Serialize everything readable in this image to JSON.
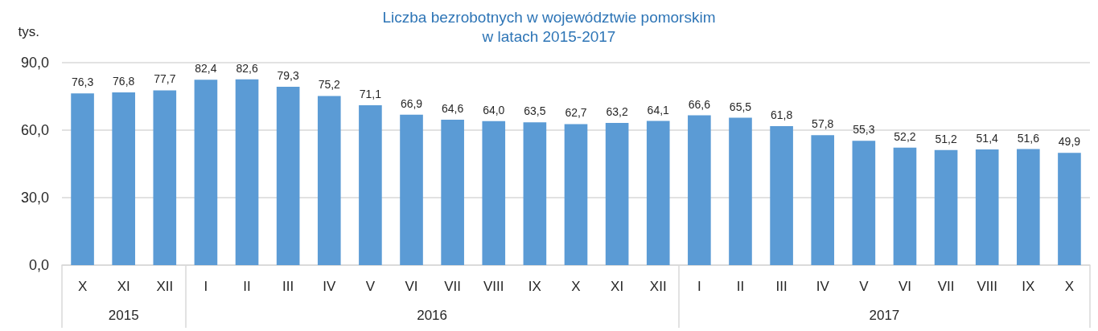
{
  "chart_data": {
    "type": "bar",
    "title": "Liczba bezrobotnych w województwie pomorskim\nw latach 2015-2017",
    "ylabel": "tys.",
    "categories": [
      "X",
      "XI",
      "XII",
      "I",
      "II",
      "III",
      "IV",
      "V",
      "VI",
      "VII",
      "VIII",
      "IX",
      "X",
      "XI",
      "XII",
      "I",
      "II",
      "III",
      "IV",
      "V",
      "VI",
      "VII",
      "VIII",
      "IX",
      "X"
    ],
    "values": [
      76.3,
      76.8,
      77.7,
      82.4,
      82.6,
      79.3,
      75.2,
      71.1,
      66.9,
      64.6,
      64.0,
      63.5,
      62.7,
      63.2,
      64.1,
      66.6,
      65.5,
      61.8,
      57.8,
      55.3,
      52.2,
      51.2,
      51.4,
      51.6,
      49.9
    ],
    "value_labels": [
      "76,3",
      "76,8",
      "77,7",
      "82,4",
      "82,6",
      "79,3",
      "75,2",
      "71,1",
      "66,9",
      "64,6",
      "64,0",
      "63,5",
      "62,7",
      "63,2",
      "64,1",
      "66,6",
      "65,5",
      "61,8",
      "57,8",
      "55,3",
      "52,2",
      "51,2",
      "51,4",
      "51,6",
      "49,9"
    ],
    "color": "#5b9bd5",
    "ylim": [
      0,
      90
    ],
    "yticks": [
      {
        "value": 0,
        "label": "0,0"
      },
      {
        "value": 30,
        "label": "30,0"
      },
      {
        "value": 60,
        "label": "60,0"
      },
      {
        "value": 90,
        "label": "90,0"
      }
    ],
    "grid": "y",
    "annotations": [
      "2015",
      "2016",
      "2017"
    ]
  }
}
